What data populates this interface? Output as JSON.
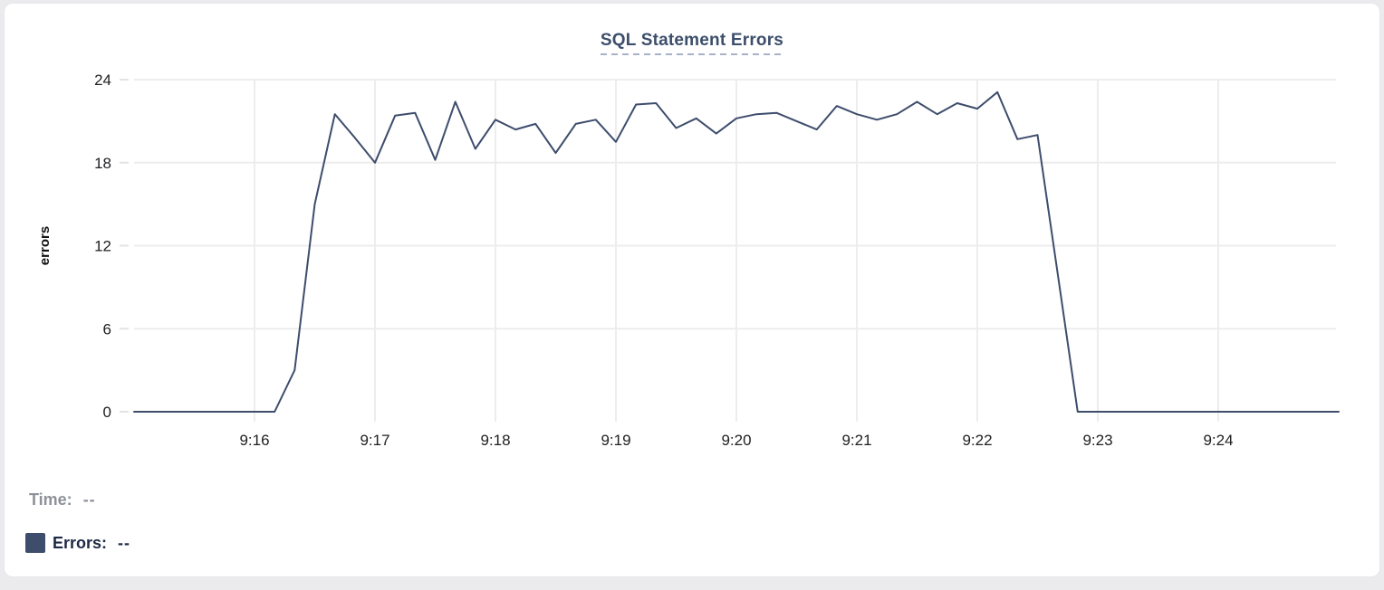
{
  "chart": {
    "title": "SQL Statement Errors",
    "y_axis_label": "errors",
    "hover_readout": {
      "time_label": "Time:",
      "time_value": "--",
      "errors_label": "Errors:",
      "errors_value": "--"
    }
  },
  "colors": {
    "line": "#3e4d6c",
    "swatch": "#3e4d6c",
    "title_text": "#3c4e6b",
    "title_underline": "#a8b2c6",
    "grid": "#ededef",
    "tick_mark": "#e3e3e6",
    "tick_text": "#202124",
    "time_readout_text": "#8d9199",
    "errors_readout_text": "#1d2945",
    "card_border": "#e7e7ea",
    "card_background": "#ffffff",
    "page_background": "#ebebed"
  },
  "chart_data": {
    "type": "line",
    "title": "SQL Statement Errors",
    "xlabel": "",
    "ylabel": "errors",
    "ylim": [
      0,
      24
    ],
    "yticks": [
      0,
      6,
      12,
      18,
      24
    ],
    "x_start": "9:15:00",
    "x_end": "9:25:00",
    "interval_seconds": 10,
    "xtick_labels": [
      "9:16",
      "9:17",
      "9:18",
      "9:19",
      "9:20",
      "9:21",
      "9:22",
      "9:23",
      "9:24"
    ],
    "grid": true,
    "legend_position": "bottom-left",
    "series": [
      {
        "name": "Errors",
        "color": "#3e4d6c",
        "values": [
          0,
          0,
          0,
          0,
          0,
          0,
          0,
          0,
          3,
          15,
          21.5,
          19.8,
          18,
          21.4,
          21.6,
          18.2,
          22.4,
          19,
          21.1,
          20.4,
          20.8,
          18.7,
          20.8,
          21.1,
          19.5,
          22.2,
          22.3,
          20.5,
          21.2,
          20.1,
          21.2,
          21.5,
          21.6,
          21,
          20.4,
          22.1,
          21.5,
          21.1,
          21.5,
          22.4,
          21.5,
          22.3,
          21.9,
          23.1,
          19.7,
          20,
          10,
          0,
          0,
          0,
          0,
          0,
          0,
          0,
          0,
          0,
          0,
          0,
          0,
          0,
          0
        ]
      }
    ]
  }
}
